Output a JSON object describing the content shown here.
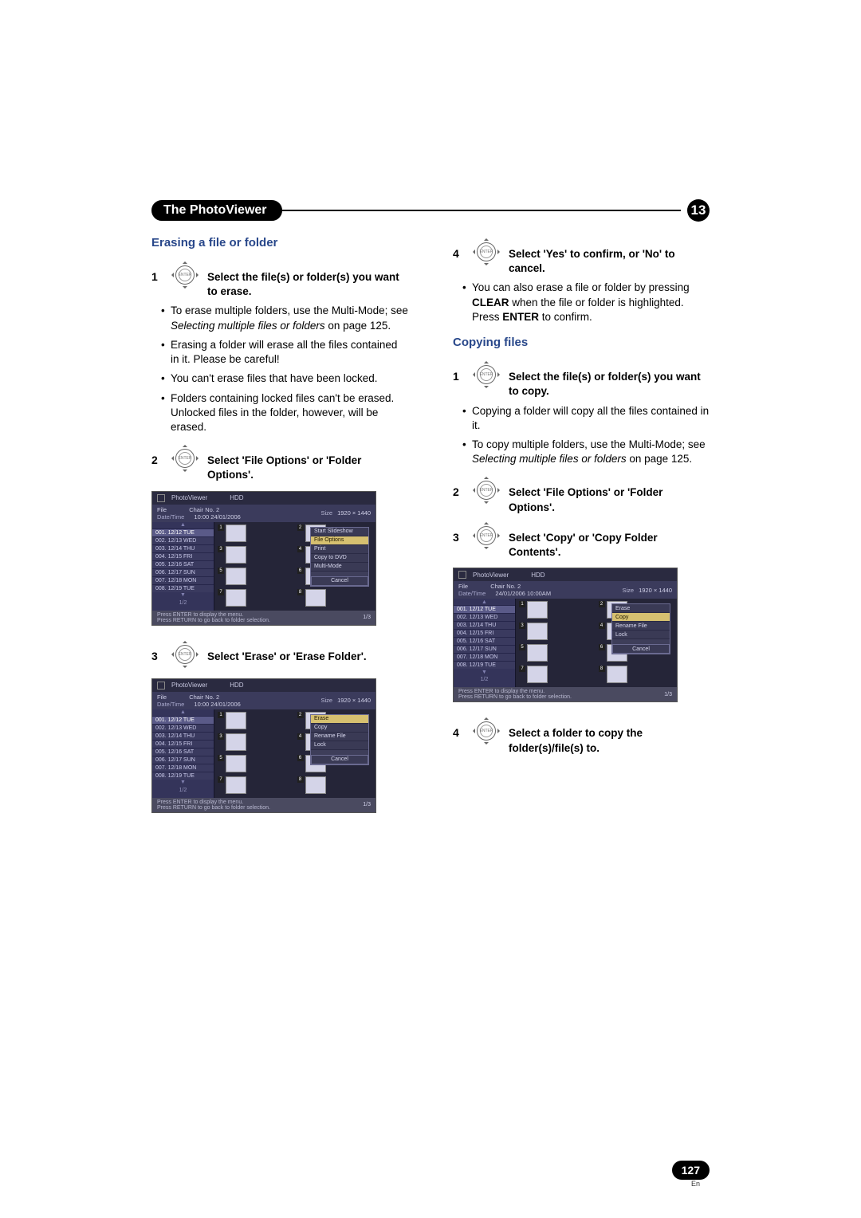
{
  "header": {
    "title": "The PhotoViewer",
    "chapter_num": "13"
  },
  "left": {
    "subhead": "Erasing a file or folder",
    "step1_label": "1",
    "step1_text": "Select the file(s) or folder(s) you want to erase.",
    "bullets1": [
      {
        "pre": "To erase multiple folders, use the Multi-Mode; see ",
        "i": "Selecting multiple files or folders",
        "post": " on page 125."
      },
      {
        "pre": "Erasing a folder will erase all the files contained in it. Please be careful!",
        "i": "",
        "post": ""
      },
      {
        "pre": "You can't erase files that have been locked.",
        "i": "",
        "post": ""
      },
      {
        "pre": "Folders containing locked files can't be erased. Unlocked files in the folder, however, will be erased.",
        "i": "",
        "post": ""
      }
    ],
    "step2_label": "2",
    "step2_text": "Select 'File Options' or 'Folder Options'.",
    "step3_label": "3",
    "step3_text": "Select 'Erase' or 'Erase Folder'."
  },
  "right": {
    "step4_label": "4",
    "step4_text": "Select 'Yes' to confirm, or 'No' to cancel.",
    "bullets4": [
      {
        "pre": "You can also erase a file or folder by pressing ",
        "b1": "CLEAR",
        "mid": " when the file or folder is highlighted. Press ",
        "b2": "ENTER",
        "post": " to confirm."
      }
    ],
    "subhead": "Copying files",
    "cstep1_label": "1",
    "cstep1_text": "Select the file(s) or folder(s) you want to copy.",
    "cbullets1": [
      {
        "pre": "Copying a folder will copy all the files contained in it.",
        "i": "",
        "post": ""
      },
      {
        "pre": "To copy multiple folders, use the Multi-Mode; see ",
        "i": "Selecting multiple files or folders",
        "post": " on page 125."
      }
    ],
    "cstep2_label": "2",
    "cstep2_text": "Select 'File Options' or 'Folder Options'.",
    "cstep3_label": "3",
    "cstep3_text": "Select 'Copy' or 'Copy Folder Contents'.",
    "cstep4_label": "4",
    "cstep4_text": "Select a folder to copy the folder(s)/file(s) to."
  },
  "pv": {
    "title": "PhotoViewer",
    "source": "HDD",
    "header": {
      "file_label": "File",
      "chair": "Chair No. 2",
      "date_label": "Date/Time",
      "date1": "10:00  24/01/2006",
      "date2": "24/01/2006 10:00AM",
      "size_label": "Size",
      "size_val": "1920 × 1440"
    },
    "list": [
      "001. 12/12 TUE",
      "002. 12/13 WED",
      "003. 12/14 THU",
      "004. 12/15 FRI",
      "005. 12/16 SAT",
      "006. 12/17 SUN",
      "007. 12/18 MON",
      "008. 12/19 TUE"
    ],
    "pager": "1/2",
    "hint1": "Press ENTER to display the menu.",
    "hint2": "Press RETURN to go back to folder selection.",
    "pg_right": "1/3",
    "badges": [
      "1",
      "2",
      "3",
      "4",
      "5",
      "6",
      "7",
      "8"
    ],
    "menu_file_options": [
      "Start Slideshow",
      "File Options",
      "Print",
      "Copy to DVD",
      "Multi-Mode"
    ],
    "menu_erase": [
      "Erase",
      "Copy",
      "Rename File",
      "Lock"
    ],
    "cancel": "Cancel",
    "colors": {
      "bg": "#2a2a40",
      "header": "#3b3b5c",
      "list": "#34345a",
      "row_sel": "#5a5a88",
      "menu_sel": "#d6c070",
      "hint": "#4a4a60"
    }
  },
  "page": {
    "num": "127",
    "lang": "En"
  }
}
